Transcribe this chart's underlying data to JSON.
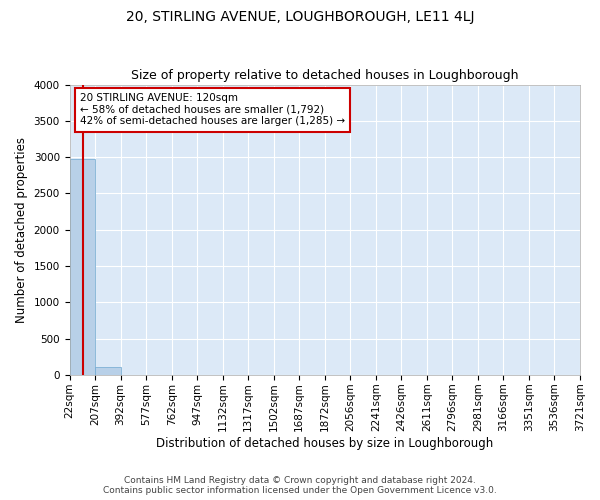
{
  "title": "20, STIRLING AVENUE, LOUGHBOROUGH, LE11 4LJ",
  "subtitle": "Size of property relative to detached houses in Loughborough",
  "xlabel": "Distribution of detached houses by size in Loughborough",
  "ylabel": "Number of detached properties",
  "footer_line1": "Contains HM Land Registry data © Crown copyright and database right 2024.",
  "footer_line2": "Contains public sector information licensed under the Open Government Licence v3.0.",
  "bin_labels": [
    "22sqm",
    "207sqm",
    "392sqm",
    "577sqm",
    "762sqm",
    "947sqm",
    "1132sqm",
    "1317sqm",
    "1502sqm",
    "1687sqm",
    "1872sqm",
    "2056sqm",
    "2241sqm",
    "2426sqm",
    "2611sqm",
    "2796sqm",
    "2981sqm",
    "3166sqm",
    "3351sqm",
    "3536sqm",
    "3721sqm"
  ],
  "bin_edges": [
    22,
    207,
    392,
    577,
    762,
    947,
    1132,
    1317,
    1502,
    1687,
    1872,
    2056,
    2241,
    2426,
    2611,
    2796,
    2981,
    3166,
    3351,
    3536,
    3721
  ],
  "bar_heights": [
    2980,
    105,
    5,
    2,
    1,
    1,
    0,
    0,
    0,
    0,
    0,
    0,
    0,
    0,
    0,
    0,
    0,
    0,
    0,
    0
  ],
  "bar_color": "#b8d0e8",
  "bar_edge_color": "#6fa8d0",
  "property_sqm": 120,
  "property_line_color": "#cc0000",
  "annotation_line1": "20 STIRLING AVENUE: 120sqm",
  "annotation_line2": "← 58% of detached houses are smaller (1,792)",
  "annotation_line3": "42% of semi-detached houses are larger (1,285) →",
  "annotation_box_color": "#cc0000",
  "ylim": [
    0,
    4000
  ],
  "yticks": [
    0,
    500,
    1000,
    1500,
    2000,
    2500,
    3000,
    3500,
    4000
  ],
  "bg_color": "#ffffff",
  "plot_bg_color": "#dce9f7",
  "grid_color": "#ffffff",
  "title_fontsize": 10,
  "subtitle_fontsize": 9,
  "xlabel_fontsize": 8.5,
  "ylabel_fontsize": 8.5,
  "tick_fontsize": 7.5,
  "footer_fontsize": 6.5
}
